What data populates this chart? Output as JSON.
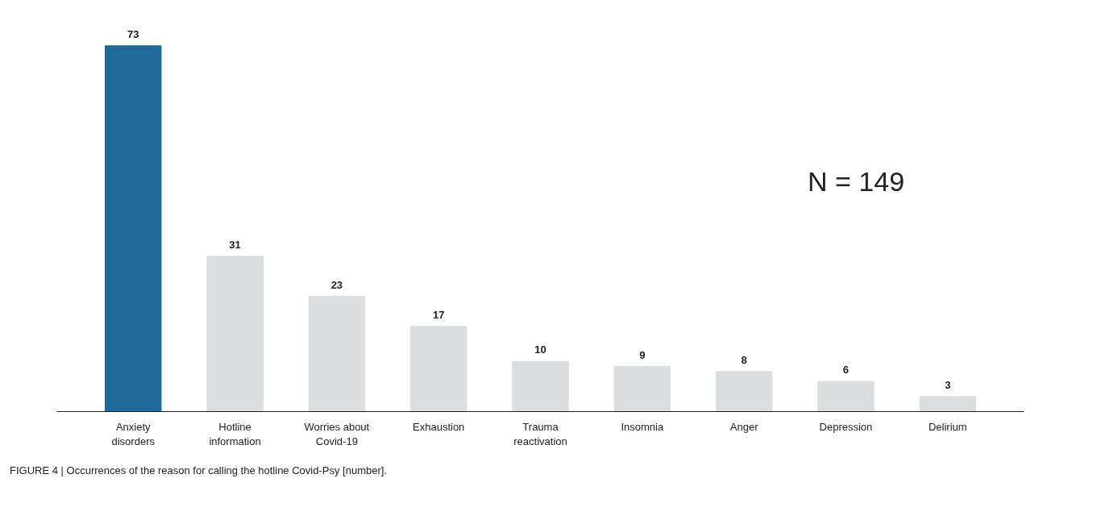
{
  "chart_data": {
    "type": "bar",
    "categories": [
      "Anxiety disorders",
      "Hotline information",
      "Worries about Covid-19",
      "Exhaustion",
      "Trauma reactivation",
      "Insomnia",
      "Anger",
      "Depression",
      "Delirium"
    ],
    "values": [
      73,
      31,
      23,
      17,
      10,
      9,
      8,
      6,
      3
    ],
    "colors": [
      "#1f6a99",
      "#dcddde",
      "#dcddde",
      "#dcddde",
      "#dcddde",
      "#dcddde",
      "#dcddde",
      "#dcddde",
      "#dcddde"
    ],
    "data_labels": true,
    "grid": false,
    "annotations": [
      "N = 149",
      "FIGURE 4 | Occurrences of the reason for calling the hotline Covid-Psy [number]."
    ]
  }
}
